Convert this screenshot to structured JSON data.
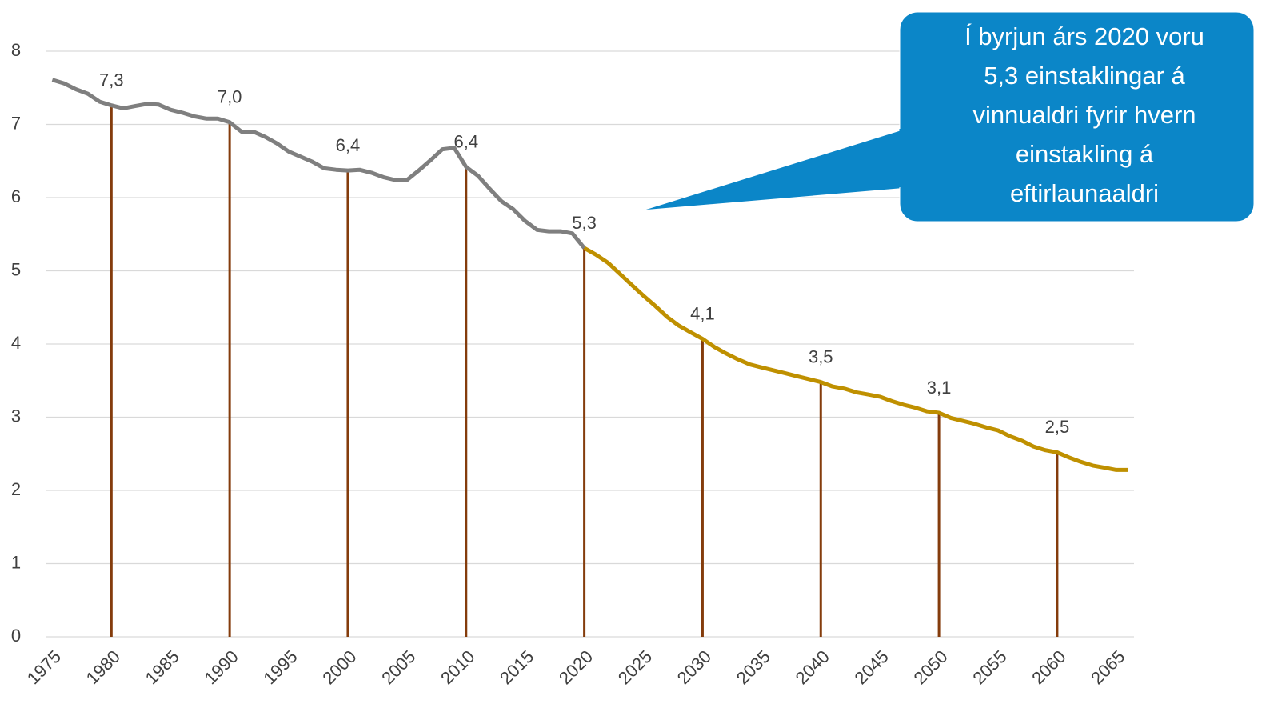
{
  "chart_data": {
    "type": "line",
    "x": [
      1975,
      1976,
      1977,
      1978,
      1979,
      1980,
      1981,
      1982,
      1983,
      1984,
      1985,
      1986,
      1987,
      1988,
      1989,
      1990,
      1991,
      1992,
      1993,
      1994,
      1995,
      1996,
      1997,
      1998,
      1999,
      2000,
      2001,
      2002,
      2003,
      2004,
      2005,
      2006,
      2007,
      2008,
      2009,
      2010,
      2011,
      2012,
      2013,
      2014,
      2015,
      2016,
      2017,
      2018,
      2019,
      2020,
      2021,
      2022,
      2023,
      2024,
      2025,
      2026,
      2027,
      2028,
      2029,
      2030,
      2031,
      2032,
      2033,
      2034,
      2035,
      2036,
      2037,
      2038,
      2039,
      2040,
      2041,
      2042,
      2043,
      2044,
      2045,
      2046,
      2047,
      2048,
      2049,
      2050,
      2051,
      2052,
      2053,
      2054,
      2055,
      2056,
      2057,
      2058,
      2059,
      2060,
      2061,
      2062,
      2063,
      2064,
      2065,
      2066
    ],
    "series": [
      {
        "color": "#7f7f7f",
        "values": [
          7.61,
          7.56,
          7.48,
          7.42,
          7.31,
          7.26,
          7.22,
          7.25,
          7.28,
          7.27,
          7.2,
          7.16,
          7.11,
          7.08,
          7.08,
          7.03,
          6.9,
          6.9,
          6.83,
          6.74,
          6.63,
          6.56,
          6.49,
          6.4,
          6.38,
          6.37,
          6.38,
          6.34,
          6.28,
          6.24,
          6.24,
          6.37,
          6.51,
          6.66,
          6.68,
          6.42,
          6.3,
          6.12,
          5.95,
          5.84,
          5.68,
          5.56,
          5.54,
          5.54,
          5.51,
          5.31,
          null,
          null,
          null,
          null,
          null,
          null,
          null,
          null,
          null,
          null,
          null,
          null,
          null,
          null,
          null,
          null,
          null,
          null,
          null,
          null,
          null,
          null,
          null,
          null,
          null,
          null,
          null,
          null,
          null,
          null,
          null,
          null,
          null,
          null,
          null,
          null,
          null,
          null,
          null,
          null,
          null,
          null,
          null,
          null,
          null,
          null
        ]
      },
      {
        "color": "#bf9000",
        "values": [
          null,
          null,
          null,
          null,
          null,
          null,
          null,
          null,
          null,
          null,
          null,
          null,
          null,
          null,
          null,
          null,
          null,
          null,
          null,
          null,
          null,
          null,
          null,
          null,
          null,
          null,
          null,
          null,
          null,
          null,
          null,
          null,
          null,
          null,
          null,
          null,
          null,
          null,
          null,
          null,
          null,
          null,
          null,
          null,
          null,
          5.31,
          5.22,
          5.11,
          4.96,
          4.81,
          4.66,
          4.52,
          4.37,
          4.25,
          4.16,
          4.07,
          3.96,
          3.87,
          3.79,
          3.72,
          3.68,
          3.64,
          3.6,
          3.56,
          3.52,
          3.48,
          3.42,
          3.39,
          3.34,
          3.31,
          3.28,
          3.22,
          3.17,
          3.13,
          3.08,
          3.06,
          2.99,
          2.95,
          2.91,
          2.86,
          2.82,
          2.74,
          2.68,
          2.6,
          2.55,
          2.52,
          2.45,
          2.39,
          2.34,
          2.31,
          2.28,
          2.28
        ]
      }
    ],
    "drop_lines": {
      "color": "#843c0c",
      "x": [
        1980,
        1990,
        2000,
        2010,
        2020,
        2030,
        2040,
        2050,
        2060
      ],
      "values": [
        7.26,
        7.03,
        6.37,
        6.42,
        5.31,
        4.07,
        3.48,
        3.06,
        2.52
      ],
      "value_labels": [
        "7,3",
        "7,0",
        "6,4",
        "6,4",
        "5,3",
        "4,1",
        "3,5",
        "3,1",
        "2,5"
      ]
    },
    "xlim": [
      1974.5,
      2066.5
    ],
    "xticks": [
      1975,
      1980,
      1985,
      1990,
      1995,
      2000,
      2005,
      2010,
      2015,
      2020,
      2025,
      2030,
      2035,
      2040,
      2045,
      2050,
      2055,
      2060,
      2065
    ],
    "ylim": [
      0,
      8
    ],
    "yticks": [
      0,
      1,
      2,
      3,
      4,
      5,
      6,
      7,
      8
    ],
    "grid": true,
    "annotation": {
      "color": "#0b86c8",
      "lines": [
        "Í byrjun árs 2020 voru",
        "5,3 einstaklingar á",
        "vinnualdri fyrir hvern",
        "einstakling á",
        "eftirlaunaaldri"
      ]
    }
  }
}
